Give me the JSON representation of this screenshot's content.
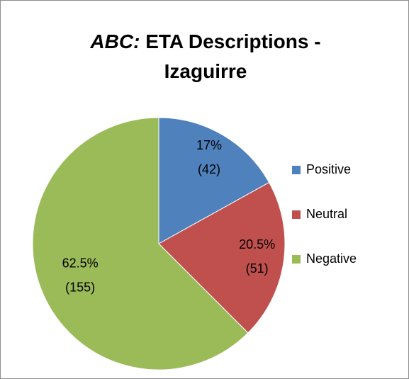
{
  "chart_data": {
    "type": "pie",
    "title_emphasis": "ABC:",
    "title": "ETA Descriptions - Izaguirre",
    "categories": [
      "Positive",
      "Neutral",
      "Negative"
    ],
    "values": [
      42,
      51,
      155
    ],
    "value_labels": [
      "(42)",
      "(51)",
      "(155)"
    ],
    "percents": [
      17,
      20.5,
      62.5
    ],
    "percent_labels": [
      "17%",
      "20.5%",
      "62.5%"
    ],
    "colors": [
      "#4F81BD",
      "#C0504D",
      "#9BBB59"
    ],
    "legend": "right"
  }
}
